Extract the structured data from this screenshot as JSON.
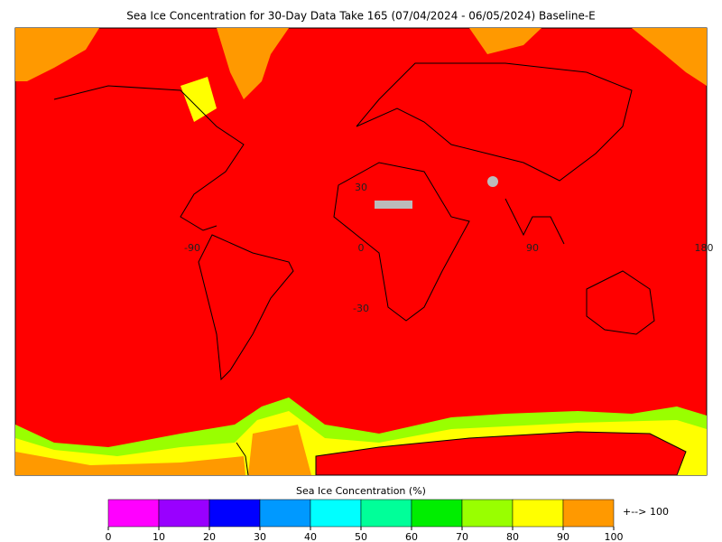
{
  "title": "Sea Ice Concentration for 30-Day Data Take 165 (07/04/2024 - 06/05/2024) Baseline-E",
  "map": {
    "lat_labels": [
      "30",
      "-30"
    ],
    "lon_labels": [
      "-90",
      "0",
      "90",
      "180"
    ]
  },
  "colorbar": {
    "label": "Sea Ice Concentration (%)",
    "ticks": [
      0,
      10,
      20,
      30,
      40,
      50,
      60,
      70,
      80,
      90,
      100
    ],
    "colors": [
      "#ff00ff",
      "#9900ff",
      "#0000ff",
      "#0099ff",
      "#00ffff",
      "#00ff99",
      "#00ee00",
      "#99ff00",
      "#ffff00",
      "#ff9900"
    ],
    "overflow_arrow": "+-->",
    "overflow_value": 100,
    "overflow_color": "#ff9900"
  }
}
